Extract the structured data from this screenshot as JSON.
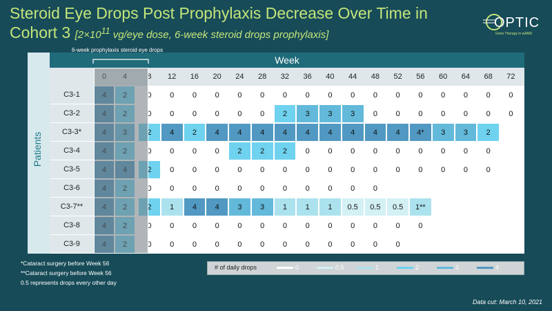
{
  "title": {
    "line1": "Steroid Eye Drops Post Prophylaxis Decrease Over Time in",
    "line2": "Cohort 3",
    "subtitle_before": "[2×10",
    "subtitle_exponent": "11",
    "subtitle_after": " vg/eye dose, 6-week steroid drops prophylaxis]"
  },
  "logo": {
    "name": "OPTIC",
    "tagline": "Gene Therapy in wAMD"
  },
  "table": {
    "bracket_label": "6-week prophylaxis steroid eye drops",
    "column_header": "Week",
    "row_header": "Patients",
    "weeks": [
      "0",
      "4",
      "8",
      "12",
      "16",
      "20",
      "24",
      "28",
      "32",
      "36",
      "40",
      "44",
      "48",
      "52",
      "56",
      "60",
      "64",
      "68",
      "72"
    ],
    "rows": [
      {
        "label": "C3-1",
        "cells": [
          "4",
          "2",
          "0",
          "0",
          "0",
          "0",
          "0",
          "0",
          "0",
          "0",
          "0",
          "0",
          "0",
          "0",
          "0",
          "0",
          "0",
          "0",
          "0"
        ]
      },
      {
        "label": "C3-2",
        "cells": [
          "4",
          "2",
          "0",
          "0",
          "0",
          "0",
          "0",
          "0",
          "2",
          "3",
          "3",
          "3",
          "0",
          "0",
          "0",
          "0",
          "0",
          "0",
          "0"
        ]
      },
      {
        "label": "C3-3*",
        "cells": [
          "4",
          "3",
          "2",
          "4",
          "2",
          "4",
          "4",
          "4",
          "4",
          "4",
          "4",
          "4",
          "4",
          "4",
          "4*",
          "3",
          "3",
          "2"
        ]
      },
      {
        "label": "C3-4",
        "cells": [
          "4",
          "2",
          "0",
          "0",
          "0",
          "0",
          "2",
          "2",
          "2",
          "0",
          "0",
          "0",
          "0",
          "0",
          "0",
          "0",
          "0",
          "0"
        ]
      },
      {
        "label": "C3-5",
        "cells": [
          "4",
          "4",
          "2",
          "0",
          "0",
          "0",
          "0",
          "0",
          "0",
          "0",
          "0",
          "0",
          "0",
          "0",
          "0",
          "0",
          "0",
          "0"
        ]
      },
      {
        "label": "C3-6",
        "cells": [
          "4",
          "2",
          "0",
          "0",
          "0",
          "0",
          "0",
          "0",
          "0",
          "0",
          "0",
          "0",
          "0"
        ]
      },
      {
        "label": "C3-7**",
        "cells": [
          "4",
          "2",
          "2",
          "1",
          "4",
          "4",
          "3",
          "3",
          "1",
          "1",
          "1",
          "0.5",
          "0.5",
          "0.5",
          "1**"
        ]
      },
      {
        "label": "C3-8",
        "cells": [
          "4",
          "2",
          "0",
          "0",
          "0",
          "0",
          "0",
          "0",
          "0",
          "0",
          "0",
          "0",
          "0",
          "0",
          "0"
        ]
      },
      {
        "label": "C3-9",
        "cells": [
          "4",
          "2",
          "0",
          "0",
          "0",
          "0",
          "0",
          "0",
          "0",
          "0",
          "0",
          "0",
          "0",
          "0"
        ]
      }
    ]
  },
  "legend": {
    "title": "# of daily drops",
    "items": [
      {
        "label": "0",
        "color": "#ffffff"
      },
      {
        "label": "0.5",
        "color": "#d3f0f5"
      },
      {
        "label": "1",
        "color": "#ace2ee"
      },
      {
        "label": "2",
        "color": "#6fd2ef"
      },
      {
        "label": "3",
        "color": "#63b9da"
      },
      {
        "label": "4",
        "color": "#5199c2"
      }
    ]
  },
  "footnotes": [
    "*Cataract surgery before Week 56",
    "**Cataract surgery before Week 56",
    "0.5 represents drops every other day"
  ],
  "data_cut": "Data cut: March 10, 2021"
}
